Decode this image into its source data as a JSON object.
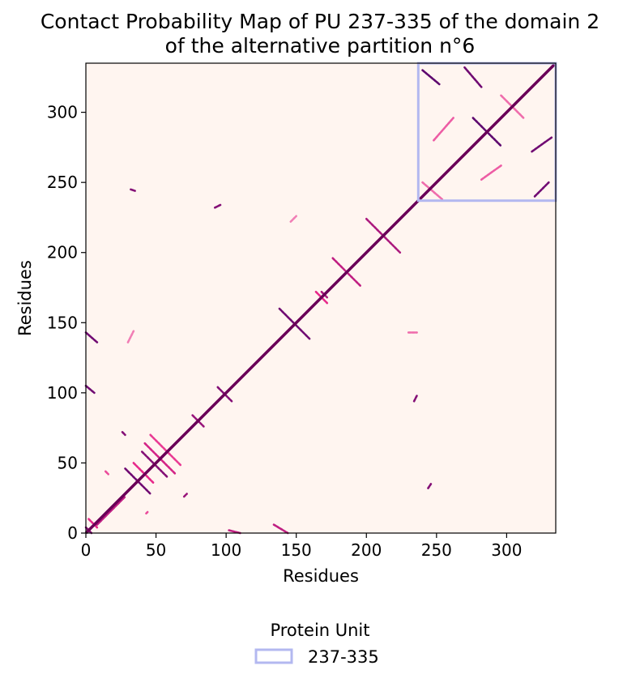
{
  "chart_data": {
    "type": "heatmap",
    "title_lines": [
      "Contact Probability Map of PU 237-335 of the domain 2",
      "of the alternative partition n°6"
    ],
    "xlabel": "Residues",
    "ylabel": "Residues",
    "xlim": [
      0,
      335
    ],
    "ylim": [
      0,
      335
    ],
    "xticks": [
      0,
      50,
      100,
      150,
      200,
      250,
      300
    ],
    "yticks": [
      0,
      50,
      100,
      150,
      200,
      250,
      300
    ],
    "colormap": {
      "low": "#fff5f0",
      "mid": "#e7298a",
      "high": "#49006a"
    },
    "background_color": "#fff5f0",
    "diagonal_color": "#6a0057",
    "highlight_box": {
      "start": 237,
      "end": 335,
      "color": "#b3b8f0"
    },
    "legend": {
      "title": "Protein Unit",
      "entries": [
        {
          "label": "237-335",
          "color": "#b3b8f0"
        }
      ]
    },
    "contact_segments": [
      {
        "from": [
          0,
          4
        ],
        "to": [
          4,
          0
        ],
        "p": 0.85
      },
      {
        "from": [
          8,
          6
        ],
        "to": [
          28,
          26
        ],
        "p": 0.7
      },
      {
        "from": [
          2,
          10
        ],
        "to": [
          8,
          4
        ],
        "p": 0.6
      },
      {
        "from": [
          28,
          46
        ],
        "to": [
          46,
          28
        ],
        "p": 0.9
      },
      {
        "from": [
          26,
          72
        ],
        "to": [
          28,
          70
        ],
        "p": 0.85
      },
      {
        "from": [
          40,
          58
        ],
        "to": [
          58,
          40
        ],
        "p": 0.85
      },
      {
        "from": [
          34,
          50
        ],
        "to": [
          48,
          36
        ],
        "p": 0.6
      },
      {
        "from": [
          42,
          64
        ],
        "to": [
          64,
          42
        ],
        "p": 0.65
      },
      {
        "from": [
          46,
          70
        ],
        "to": [
          68,
          48
        ],
        "p": 0.55
      },
      {
        "from": [
          70,
          26
        ],
        "to": [
          72,
          28
        ],
        "p": 0.8
      },
      {
        "from": [
          0,
          105
        ],
        "to": [
          6,
          100
        ],
        "p": 0.9
      },
      {
        "from": [
          0,
          143
        ],
        "to": [
          8,
          136
        ],
        "p": 0.9
      },
      {
        "from": [
          14,
          44
        ],
        "to": [
          16,
          42
        ],
        "p": 0.5
      },
      {
        "from": [
          43,
          14
        ],
        "to": [
          44,
          15
        ],
        "p": 0.5
      },
      {
        "from": [
          94,
          104
        ],
        "to": [
          104,
          94
        ],
        "p": 0.85
      },
      {
        "from": [
          76,
          84
        ],
        "to": [
          84,
          76
        ],
        "p": 0.8
      },
      {
        "from": [
          102,
          2
        ],
        "to": [
          110,
          0
        ],
        "p": 0.7
      },
      {
        "from": [
          134,
          6
        ],
        "to": [
          144,
          0
        ],
        "p": 0.7
      },
      {
        "from": [
          138,
          160
        ],
        "to": [
          160,
          138
        ],
        "p": 0.9
      },
      {
        "from": [
          30,
          136
        ],
        "to": [
          34,
          144
        ],
        "p": 0.35
      },
      {
        "from": [
          164,
          172
        ],
        "to": [
          172,
          164
        ],
        "p": 0.6
      },
      {
        "from": [
          176,
          196
        ],
        "to": [
          196,
          176
        ],
        "p": 0.7
      },
      {
        "from": [
          168,
          172
        ],
        "to": [
          172,
          168
        ],
        "p": 0.75
      },
      {
        "from": [
          200,
          224
        ],
        "to": [
          224,
          200
        ],
        "p": 0.75
      },
      {
        "from": [
          92,
          232
        ],
        "to": [
          96,
          234
        ],
        "p": 0.85
      },
      {
        "from": [
          32,
          245
        ],
        "to": [
          35,
          244
        ],
        "p": 0.85
      },
      {
        "from": [
          234,
          94
        ],
        "to": [
          236,
          98
        ],
        "p": 0.85
      },
      {
        "from": [
          244,
          32
        ],
        "to": [
          246,
          35
        ],
        "p": 0.85
      },
      {
        "from": [
          146,
          222
        ],
        "to": [
          150,
          226
        ],
        "p": 0.35
      },
      {
        "from": [
          230,
          143
        ],
        "to": [
          236,
          143
        ],
        "p": 0.4
      },
      {
        "from": [
          240,
          330
        ],
        "to": [
          252,
          320
        ],
        "p": 0.95
      },
      {
        "from": [
          270,
          332
        ],
        "to": [
          282,
          318
        ],
        "p": 0.9
      },
      {
        "from": [
          320,
          240
        ],
        "to": [
          330,
          250
        ],
        "p": 0.9
      },
      {
        "from": [
          318,
          272
        ],
        "to": [
          332,
          282
        ],
        "p": 0.9
      },
      {
        "from": [
          276,
          296
        ],
        "to": [
          296,
          276
        ],
        "p": 0.95
      },
      {
        "from": [
          248,
          280
        ],
        "to": [
          262,
          296
        ],
        "p": 0.45
      },
      {
        "from": [
          282,
          252
        ],
        "to": [
          296,
          262
        ],
        "p": 0.45
      },
      {
        "from": [
          296,
          312
        ],
        "to": [
          312,
          296
        ],
        "p": 0.4
      },
      {
        "from": [
          240,
          250
        ],
        "to": [
          254,
          238
        ],
        "p": 0.4
      }
    ]
  }
}
